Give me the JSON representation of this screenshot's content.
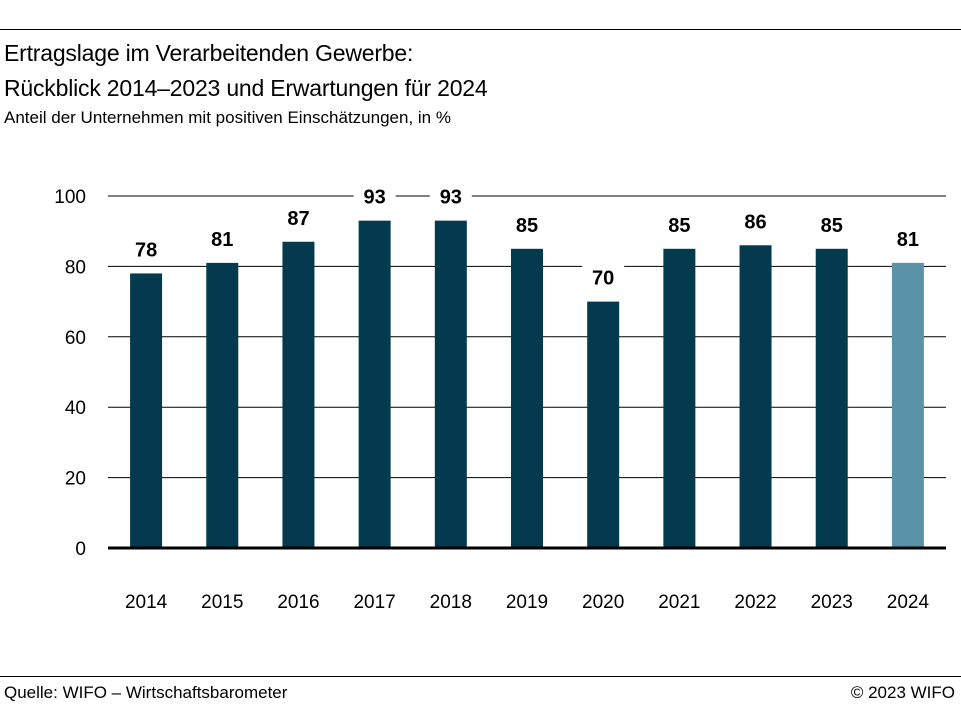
{
  "title_line1": "Ertragslage im Verarbeitenden Gewerbe:",
  "title_line2": "Rückblick 2014–2023 und Erwartungen für 2024",
  "subtitle": "Anteil der Unternehmen mit positiven Einschätzungen, in %",
  "source": "Quelle: WIFO – Wirtschaftsbarometer",
  "copyright": "© 2023 WIFO",
  "colors": {
    "history": "#043a4d",
    "forecast": "#5a93a9",
    "grid": "#000000"
  },
  "chart_data": {
    "type": "bar",
    "title": "Ertragslage im Verarbeitenden Gewerbe: Rückblick 2014–2023 und Erwartungen für 2024",
    "ylabel": "Anteil der Unternehmen mit positiven Einschätzungen, in %",
    "xlabel": "",
    "categories": [
      "2014",
      "2015",
      "2016",
      "2017",
      "2018",
      "2019",
      "2020",
      "2021",
      "2022",
      "2023",
      "2024"
    ],
    "values": [
      78,
      81,
      87,
      93,
      93,
      85,
      70,
      85,
      86,
      85,
      81
    ],
    "forecast_index": 10,
    "ylim": [
      0,
      100
    ],
    "yticks": [
      0,
      20,
      40,
      60,
      80,
      100
    ],
    "grid": true
  }
}
